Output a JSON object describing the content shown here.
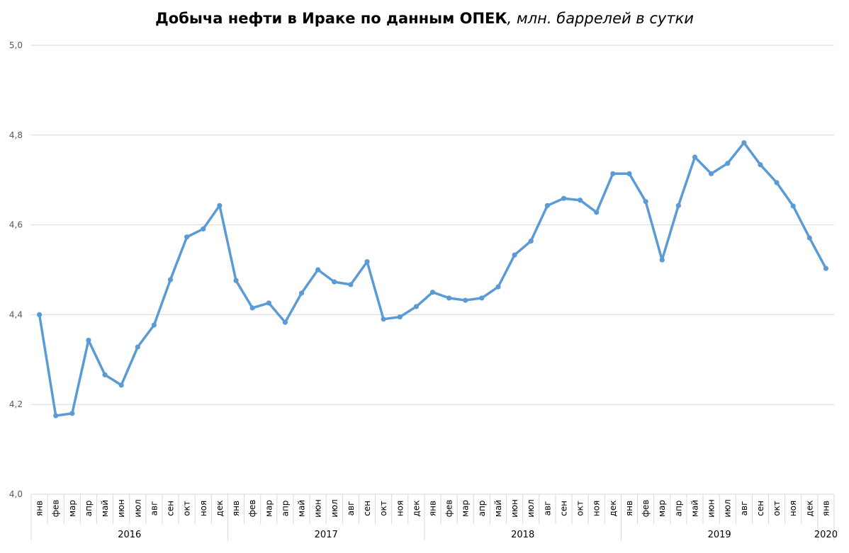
{
  "title": {
    "bold": "Добыча нефти в Ираке по данным ОПЕК",
    "italic": ", млн. баррелей в сутки"
  },
  "colors": {
    "series": "#5b9bd5",
    "grid": "#d9d9d9",
    "axis_text": "#595959"
  },
  "chart_data": {
    "type": "line",
    "title": "Добыча нефти в Ираке по данным ОПЕК, млн. баррелей в сутки",
    "ylim": [
      4.0,
      5.0
    ],
    "yticks": [
      "4,0",
      "4,2",
      "4,4",
      "4,6",
      "4,8",
      "5,0"
    ],
    "grid": true,
    "legend": "none",
    "x": [
      {
        "month": "янв",
        "year": "2016"
      },
      {
        "month": "фев",
        "year": "2016"
      },
      {
        "month": "мар",
        "year": "2016"
      },
      {
        "month": "апр",
        "year": "2016"
      },
      {
        "month": "май",
        "year": "2016"
      },
      {
        "month": "июн",
        "year": "2016"
      },
      {
        "month": "июл",
        "year": "2016"
      },
      {
        "month": "авг",
        "year": "2016"
      },
      {
        "month": "сен",
        "year": "2016"
      },
      {
        "month": "окт",
        "year": "2016"
      },
      {
        "month": "ноя",
        "year": "2016"
      },
      {
        "month": "дек",
        "year": "2016"
      },
      {
        "month": "янв",
        "year": "2017"
      },
      {
        "month": "фев",
        "year": "2017"
      },
      {
        "month": "мар",
        "year": "2017"
      },
      {
        "month": "апр",
        "year": "2017"
      },
      {
        "month": "май",
        "year": "2017"
      },
      {
        "month": "июн",
        "year": "2017"
      },
      {
        "month": "июл",
        "year": "2017"
      },
      {
        "month": "авг",
        "year": "2017"
      },
      {
        "month": "сен",
        "year": "2017"
      },
      {
        "month": "окт",
        "year": "2017"
      },
      {
        "month": "ноя",
        "year": "2017"
      },
      {
        "month": "дек",
        "year": "2017"
      },
      {
        "month": "янв",
        "year": "2018"
      },
      {
        "month": "фев",
        "year": "2018"
      },
      {
        "month": "мар",
        "year": "2018"
      },
      {
        "month": "апр",
        "year": "2018"
      },
      {
        "month": "май",
        "year": "2018"
      },
      {
        "month": "июн",
        "year": "2018"
      },
      {
        "month": "июл",
        "year": "2018"
      },
      {
        "month": "авг",
        "year": "2018"
      },
      {
        "month": "сен",
        "year": "2018"
      },
      {
        "month": "окт",
        "year": "2018"
      },
      {
        "month": "ноя",
        "year": "2018"
      },
      {
        "month": "дек",
        "year": "2018"
      },
      {
        "month": "янв",
        "year": "2019"
      },
      {
        "month": "фев",
        "year": "2019"
      },
      {
        "month": "мар",
        "year": "2019"
      },
      {
        "month": "апр",
        "year": "2019"
      },
      {
        "month": "май",
        "year": "2019"
      },
      {
        "month": "июн",
        "year": "2019"
      },
      {
        "month": "июл",
        "year": "2019"
      },
      {
        "month": "авг",
        "year": "2019"
      },
      {
        "month": "сен",
        "year": "2019"
      },
      {
        "month": "окт",
        "year": "2019"
      },
      {
        "month": "ноя",
        "year": "2019"
      },
      {
        "month": "дек",
        "year": "2019"
      },
      {
        "month": "янв",
        "year": "2020"
      }
    ],
    "years": [
      "2016",
      "2017",
      "2018",
      "2019",
      "2020"
    ],
    "series": [
      {
        "values": [
          4.4,
          4.175,
          4.18,
          4.343,
          4.266,
          4.243,
          4.328,
          4.377,
          4.478,
          4.573,
          4.591,
          4.643,
          4.476,
          4.415,
          4.426,
          4.383,
          4.448,
          4.5,
          4.473,
          4.467,
          4.518,
          4.39,
          4.395,
          4.418,
          4.45,
          4.437,
          4.432,
          4.437,
          4.462,
          4.533,
          4.564,
          4.643,
          4.659,
          4.655,
          4.628,
          4.714,
          4.714,
          4.652,
          4.522,
          4.643,
          4.751,
          4.714,
          4.737,
          4.783,
          4.734,
          4.694,
          4.642,
          4.571,
          4.503
        ]
      }
    ]
  }
}
